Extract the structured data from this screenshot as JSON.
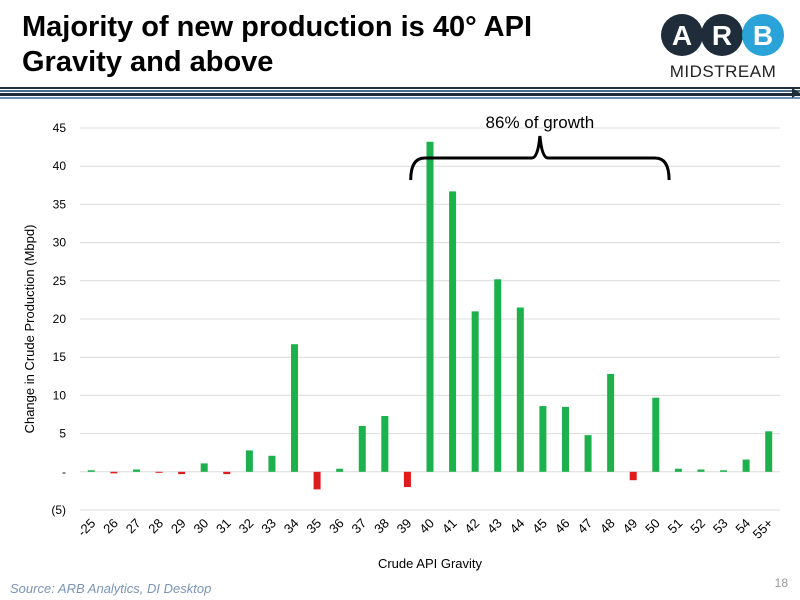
{
  "header": {
    "title_line1": "Majority of new production is 40° API",
    "title_line2": "Gravity and above"
  },
  "logo": {
    "letters": [
      "A",
      "R",
      "B"
    ],
    "subtitle": "MIDSTREAM",
    "circle_color": "#1f2c3a",
    "accent_color": "#2aa3d8"
  },
  "chart_data": {
    "type": "bar",
    "categories": [
      "-25",
      "26",
      "27",
      "28",
      "29",
      "30",
      "31",
      "32",
      "33",
      "34",
      "35",
      "36",
      "37",
      "38",
      "39",
      "40",
      "41",
      "42",
      "43",
      "44",
      "45",
      "46",
      "47",
      "48",
      "49",
      "50",
      "51",
      "52",
      "53",
      "54",
      "55+"
    ],
    "values": [
      0.2,
      -0.2,
      0.3,
      -0.1,
      -0.3,
      1.1,
      -0.3,
      2.8,
      2.1,
      16.7,
      -2.3,
      0.4,
      6.0,
      7.3,
      -2.0,
      43.2,
      36.7,
      21.0,
      25.2,
      21.5,
      8.6,
      8.5,
      4.8,
      12.8,
      -1.1,
      9.7,
      0.4,
      0.3,
      0.2,
      1.6,
      5.3
    ],
    "xlabel": "Crude API Gravity",
    "ylabel": "Change in Crude Production (Mbpd)",
    "ylim": [
      -5,
      45
    ],
    "yticks": [
      -5,
      0,
      5,
      10,
      15,
      20,
      25,
      30,
      35,
      40,
      45
    ],
    "ytick_labels": [
      "(5)",
      "-",
      "5",
      "10",
      "15",
      "20",
      "25",
      "30",
      "35",
      "40",
      "45"
    ],
    "positive_color": "#1db04c",
    "negative_color": "#e01b1b",
    "grid": true,
    "annotation": {
      "text": "86% of growth",
      "from_category": "40",
      "to_category": "50"
    }
  },
  "footer": {
    "source": "Source: ARB Analytics, DI Desktop",
    "page": "18"
  }
}
